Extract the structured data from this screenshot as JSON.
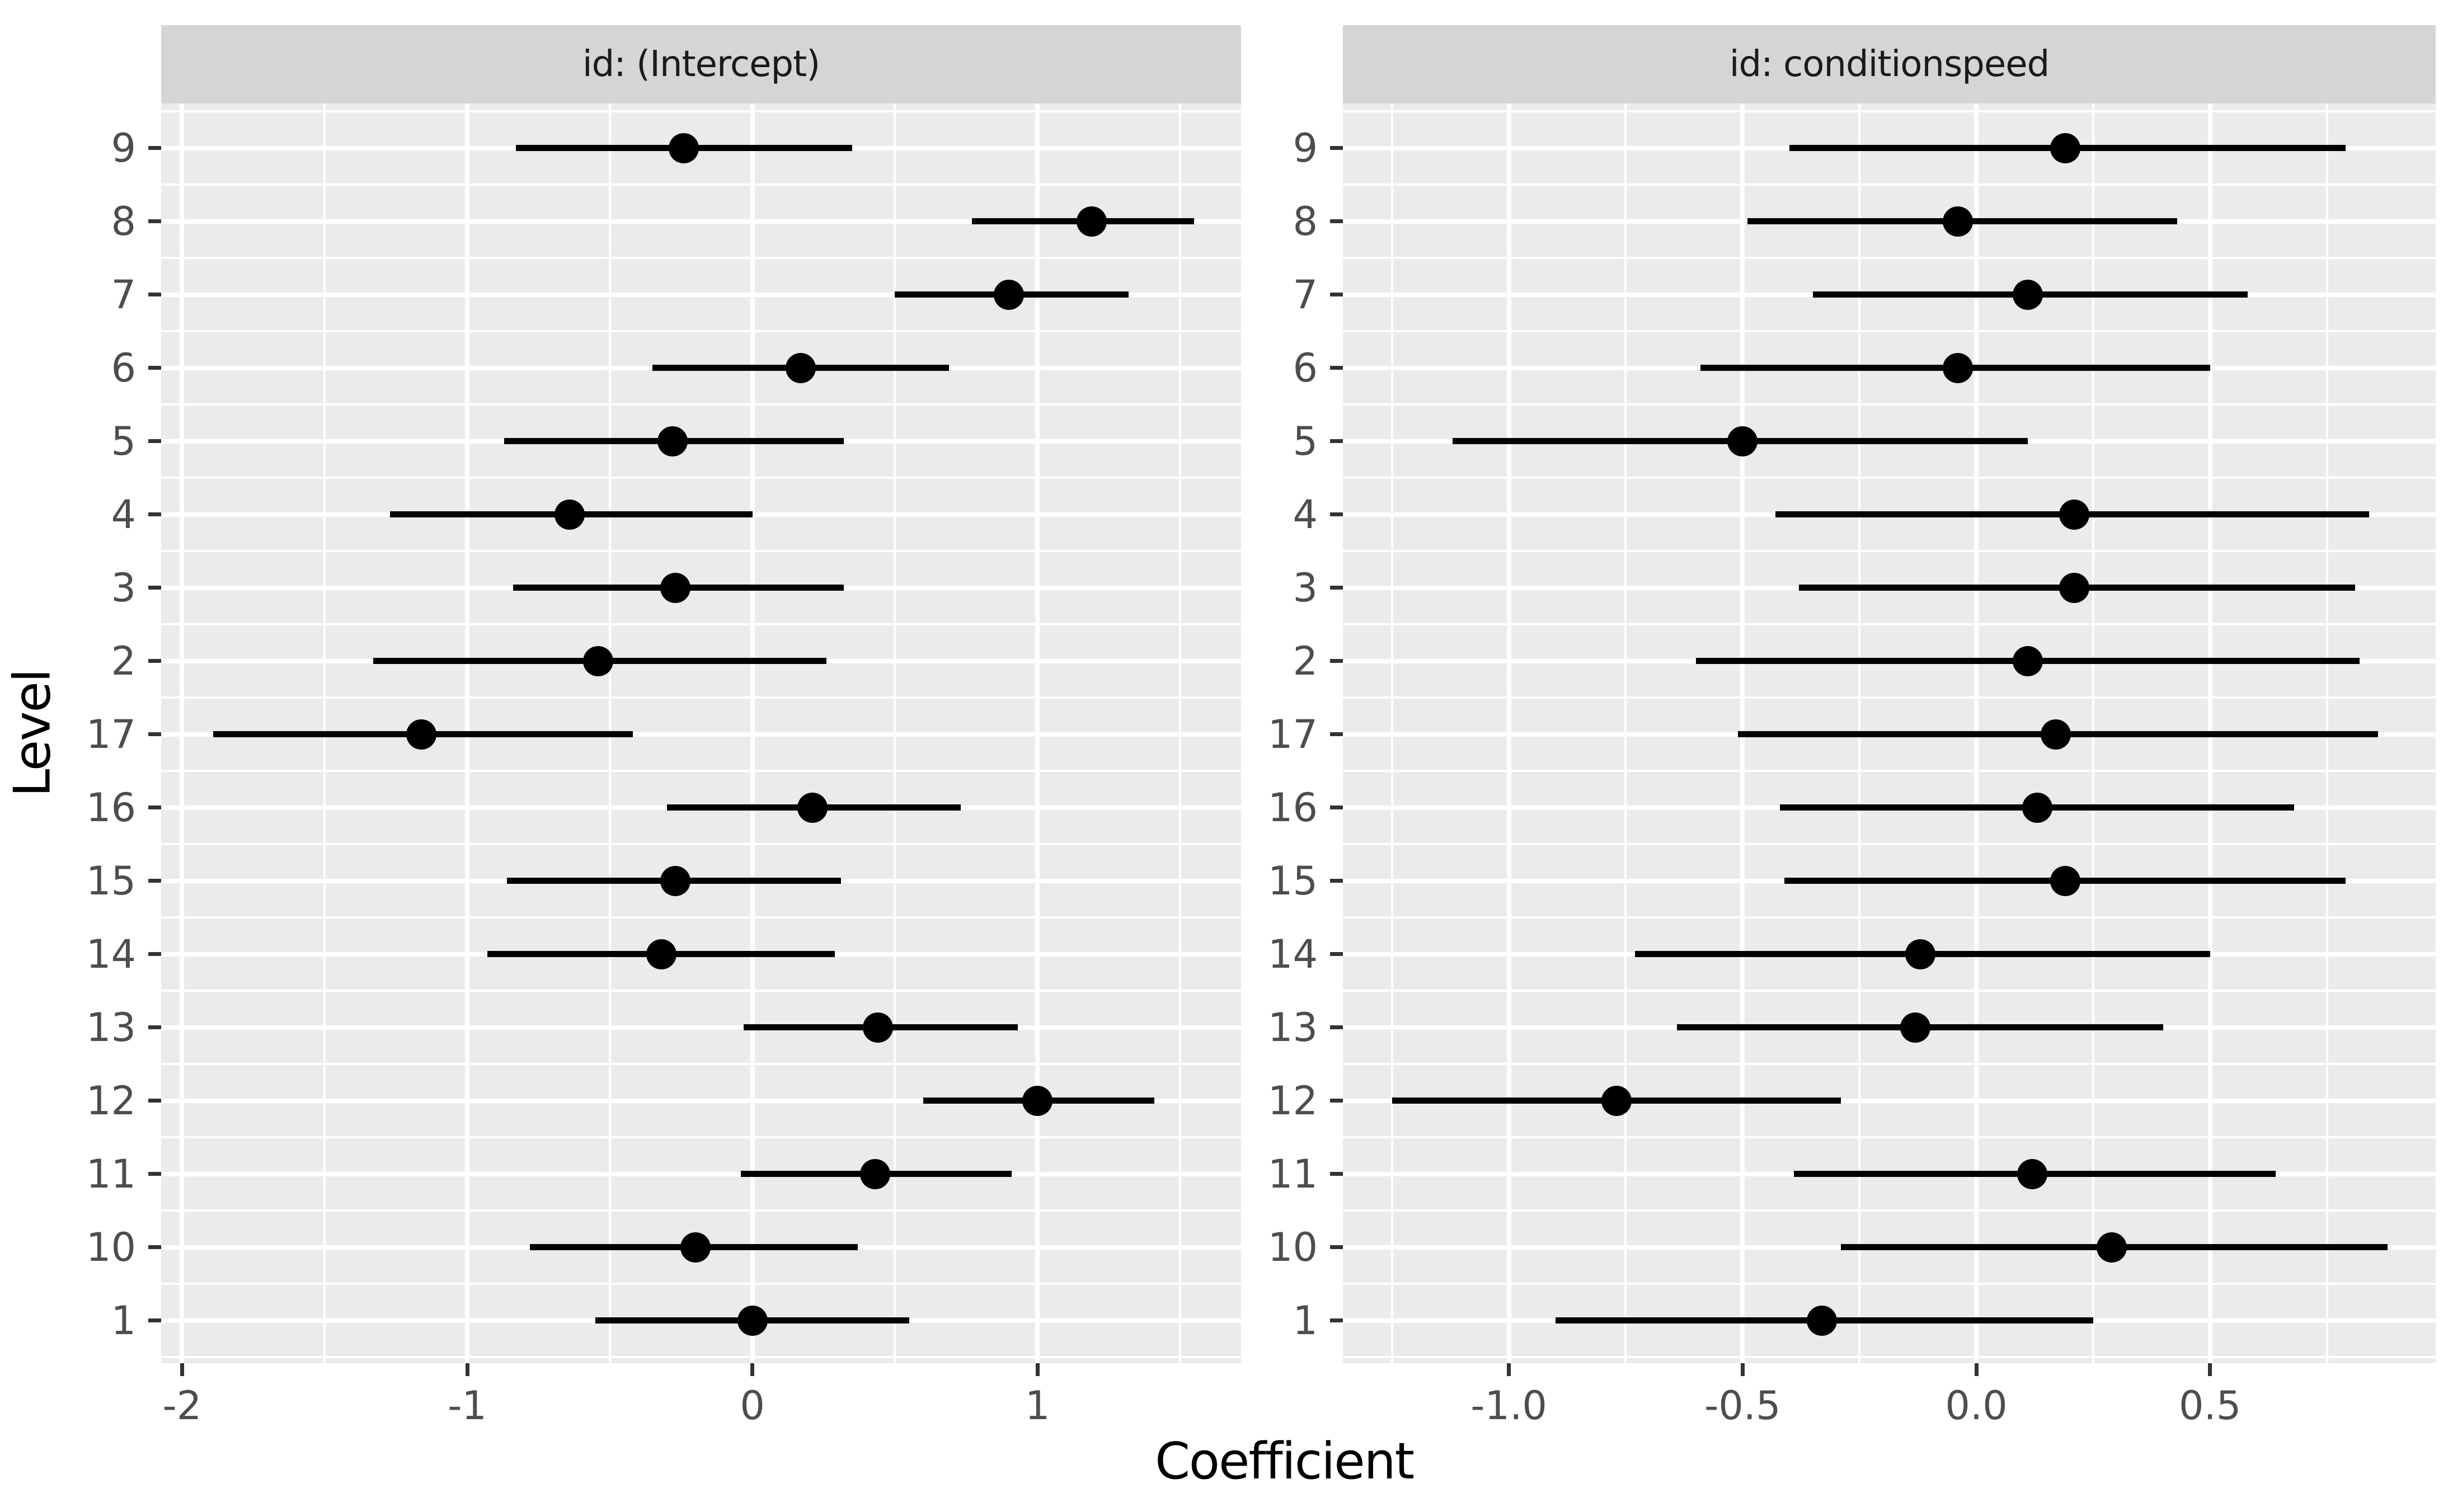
{
  "chart_data": {
    "type": "scatter",
    "subtype": "pointrange-dot-whisker",
    "title": "",
    "xlabel": "Coefficient",
    "ylabel": "Level",
    "legend": "none",
    "grid": "white major and minor gridlines on grey panel",
    "y_categories_top_to_bottom": [
      "9",
      "8",
      "7",
      "6",
      "5",
      "4",
      "3",
      "2",
      "17",
      "16",
      "15",
      "14",
      "13",
      "12",
      "11",
      "10",
      "1"
    ],
    "facets": [
      {
        "label": "id: (Intercept)",
        "x_axis": {
          "tick_labels": [
            "-2",
            "-1",
            "0",
            "1"
          ],
          "tick_values": [
            -2,
            -1,
            0,
            1
          ],
          "minor_values": [
            -1.5,
            -0.5,
            0.5,
            1.5
          ],
          "xlim": [
            -2.07,
            1.71
          ]
        },
        "points": [
          {
            "level": "9",
            "estimate": -0.24,
            "ci_low": -0.83,
            "ci_high": 0.35
          },
          {
            "level": "8",
            "estimate": 1.19,
            "ci_low": 0.77,
            "ci_high": 1.55
          },
          {
            "level": "7",
            "estimate": 0.9,
            "ci_low": 0.5,
            "ci_high": 1.32
          },
          {
            "level": "6",
            "estimate": 0.17,
            "ci_low": -0.35,
            "ci_high": 0.69
          },
          {
            "level": "5",
            "estimate": -0.28,
            "ci_low": -0.87,
            "ci_high": 0.32
          },
          {
            "level": "4",
            "estimate": -0.64,
            "ci_low": -1.27,
            "ci_high": 0.0
          },
          {
            "level": "3",
            "estimate": -0.27,
            "ci_low": -0.84,
            "ci_high": 0.32
          },
          {
            "level": "2",
            "estimate": -0.54,
            "ci_low": -1.33,
            "ci_high": 0.26
          },
          {
            "level": "17",
            "estimate": -1.16,
            "ci_low": -1.89,
            "ci_high": -0.42
          },
          {
            "level": "16",
            "estimate": 0.21,
            "ci_low": -0.3,
            "ci_high": 0.73
          },
          {
            "level": "15",
            "estimate": -0.27,
            "ci_low": -0.86,
            "ci_high": 0.31
          },
          {
            "level": "14",
            "estimate": -0.32,
            "ci_low": -0.93,
            "ci_high": 0.29
          },
          {
            "level": "13",
            "estimate": 0.44,
            "ci_low": -0.03,
            "ci_high": 0.93
          },
          {
            "level": "12",
            "estimate": 1.0,
            "ci_low": 0.6,
            "ci_high": 1.41
          },
          {
            "level": "11",
            "estimate": 0.43,
            "ci_low": -0.04,
            "ci_high": 0.91
          },
          {
            "level": "10",
            "estimate": -0.2,
            "ci_low": -0.78,
            "ci_high": 0.37
          },
          {
            "level": "1",
            "estimate": 0.0,
            "ci_low": -0.55,
            "ci_high": 0.55
          }
        ]
      },
      {
        "label": "id: conditionspeed",
        "x_axis": {
          "tick_labels": [
            "-1.0",
            "-0.5",
            "0.0",
            "0.5"
          ],
          "tick_values": [
            -1.0,
            -0.5,
            0.0,
            0.5
          ],
          "minor_values": [
            -1.25,
            -0.75,
            -0.25,
            0.25,
            0.75
          ],
          "xlim": [
            -1.36,
            0.98
          ]
        },
        "points": [
          {
            "level": "9",
            "estimate": 0.19,
            "ci_low": -0.4,
            "ci_high": 0.79
          },
          {
            "level": "8",
            "estimate": -0.04,
            "ci_low": -0.49,
            "ci_high": 0.43
          },
          {
            "level": "7",
            "estimate": 0.11,
            "ci_low": -0.35,
            "ci_high": 0.58
          },
          {
            "level": "6",
            "estimate": -0.04,
            "ci_low": -0.59,
            "ci_high": 0.5
          },
          {
            "level": "5",
            "estimate": -0.5,
            "ci_low": -1.12,
            "ci_high": 0.11
          },
          {
            "level": "4",
            "estimate": 0.21,
            "ci_low": -0.43,
            "ci_high": 0.84
          },
          {
            "level": "3",
            "estimate": 0.21,
            "ci_low": -0.38,
            "ci_high": 0.81
          },
          {
            "level": "2",
            "estimate": 0.11,
            "ci_low": -0.6,
            "ci_high": 0.82
          },
          {
            "level": "17",
            "estimate": 0.17,
            "ci_low": -0.51,
            "ci_high": 0.86
          },
          {
            "level": "16",
            "estimate": 0.13,
            "ci_low": -0.42,
            "ci_high": 0.68
          },
          {
            "level": "15",
            "estimate": 0.19,
            "ci_low": -0.41,
            "ci_high": 0.79
          },
          {
            "level": "14",
            "estimate": -0.12,
            "ci_low": -0.73,
            "ci_high": 0.5
          },
          {
            "level": "13",
            "estimate": -0.13,
            "ci_low": -0.64,
            "ci_high": 0.4
          },
          {
            "level": "12",
            "estimate": -0.77,
            "ci_low": -1.25,
            "ci_high": -0.29
          },
          {
            "level": "11",
            "estimate": 0.12,
            "ci_low": -0.39,
            "ci_high": 0.64
          },
          {
            "level": "10",
            "estimate": 0.29,
            "ci_low": -0.29,
            "ci_high": 0.88
          },
          {
            "level": "1",
            "estimate": -0.33,
            "ci_low": -0.9,
            "ci_high": 0.25
          }
        ]
      }
    ]
  },
  "colors": {
    "background": "#FFFFFF",
    "panel_bg": "#EBEBEB",
    "strip_bg": "#D5D5D5",
    "strip_text": "#1A1A1A",
    "gridline": "#FFFFFF",
    "point": "#000000",
    "ci_line": "#000000",
    "tick_label": "#4D4D4D",
    "tick_mark": "#333333",
    "axis_title": "#000000"
  }
}
